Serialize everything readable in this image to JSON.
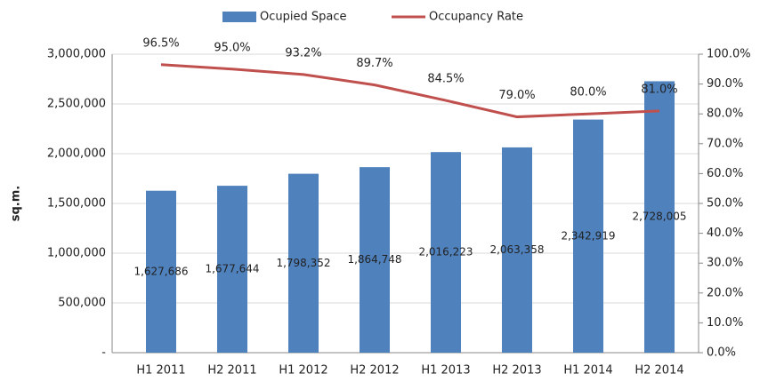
{
  "chart_data": {
    "type": "bar",
    "y_label": "sq.m.",
    "categories": [
      "H1 2011",
      "H2 2011",
      "H1 2012",
      "H2 2012",
      "H1 2013",
      "H2 2013",
      "H1 2014",
      "H2 2014"
    ],
    "series": [
      {
        "name": "Ocupied Space",
        "type": "bar",
        "axis": "y",
        "color": "#4f81bd",
        "values": [
          1627686,
          1677644,
          1798352,
          1864748,
          2016223,
          2063358,
          2342919,
          2728005
        ],
        "value_labels": [
          "1,627,686",
          "1,677,644",
          "1,798,352",
          "1,864,748",
          "2,016,223",
          "2,063,358",
          "2,342,919",
          "2,728,005"
        ]
      },
      {
        "name": "Occupancy Rate",
        "type": "line",
        "axis": "y2",
        "color": "#c0504d",
        "values": [
          96.5,
          95.0,
          93.2,
          89.7,
          84.5,
          79.0,
          80.0,
          81.0
        ],
        "value_labels": [
          "96.5%",
          "95.0%",
          "93.2%",
          "89.7%",
          "84.5%",
          "79.0%",
          "80.0%",
          "81.0%"
        ]
      }
    ],
    "ylim": [
      0,
      3000000
    ],
    "yticks": [
      {
        "value": 0,
        "label": "-"
      },
      {
        "value": 500000,
        "label": "500,000"
      },
      {
        "value": 1000000,
        "label": "1,000,000"
      },
      {
        "value": 1500000,
        "label": "1,500,000"
      },
      {
        "value": 2000000,
        "label": "2,000,000"
      },
      {
        "value": 2500000,
        "label": "2,500,000"
      },
      {
        "value": 3000000,
        "label": "3,000,000"
      }
    ],
    "y2lim": [
      0,
      100
    ],
    "y2ticks": [
      {
        "value": 0,
        "label": "0.0%"
      },
      {
        "value": 10,
        "label": "10.0%"
      },
      {
        "value": 20,
        "label": "20.0%"
      },
      {
        "value": 30,
        "label": "30.0%"
      },
      {
        "value": 40,
        "label": "40.0%"
      },
      {
        "value": 50,
        "label": "50.0%"
      },
      {
        "value": 60,
        "label": "60.0%"
      },
      {
        "value": 70,
        "label": "70.0%"
      },
      {
        "value": 80,
        "label": "80.0%"
      },
      {
        "value": 90,
        "label": "90.0%"
      },
      {
        "value": 100,
        "label": "100.0%"
      }
    ],
    "grid": true,
    "legend": "top"
  }
}
